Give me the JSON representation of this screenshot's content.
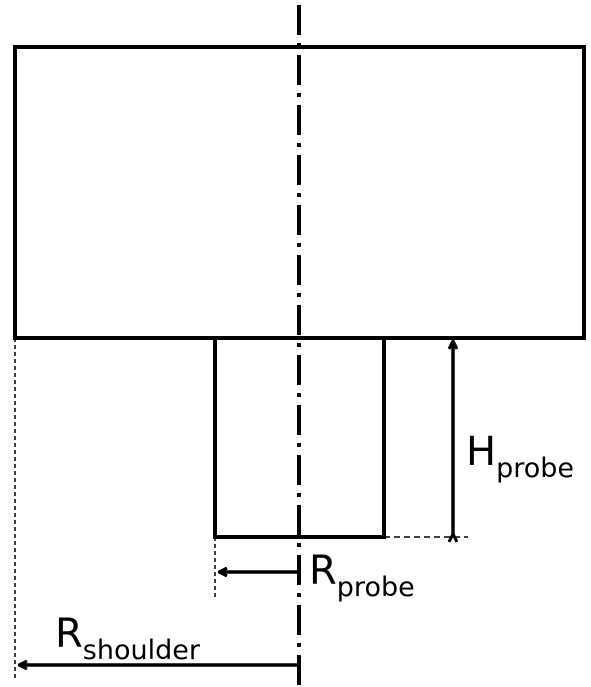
{
  "labels": {
    "h_probe": {
      "main": "H",
      "sub": "probe"
    },
    "r_probe": {
      "main": "R",
      "sub": "probe"
    },
    "r_shoulder": {
      "main": "R",
      "sub": "shoulder"
    }
  },
  "colors": {
    "stroke": "#000000",
    "background": "#ffffff"
  }
}
